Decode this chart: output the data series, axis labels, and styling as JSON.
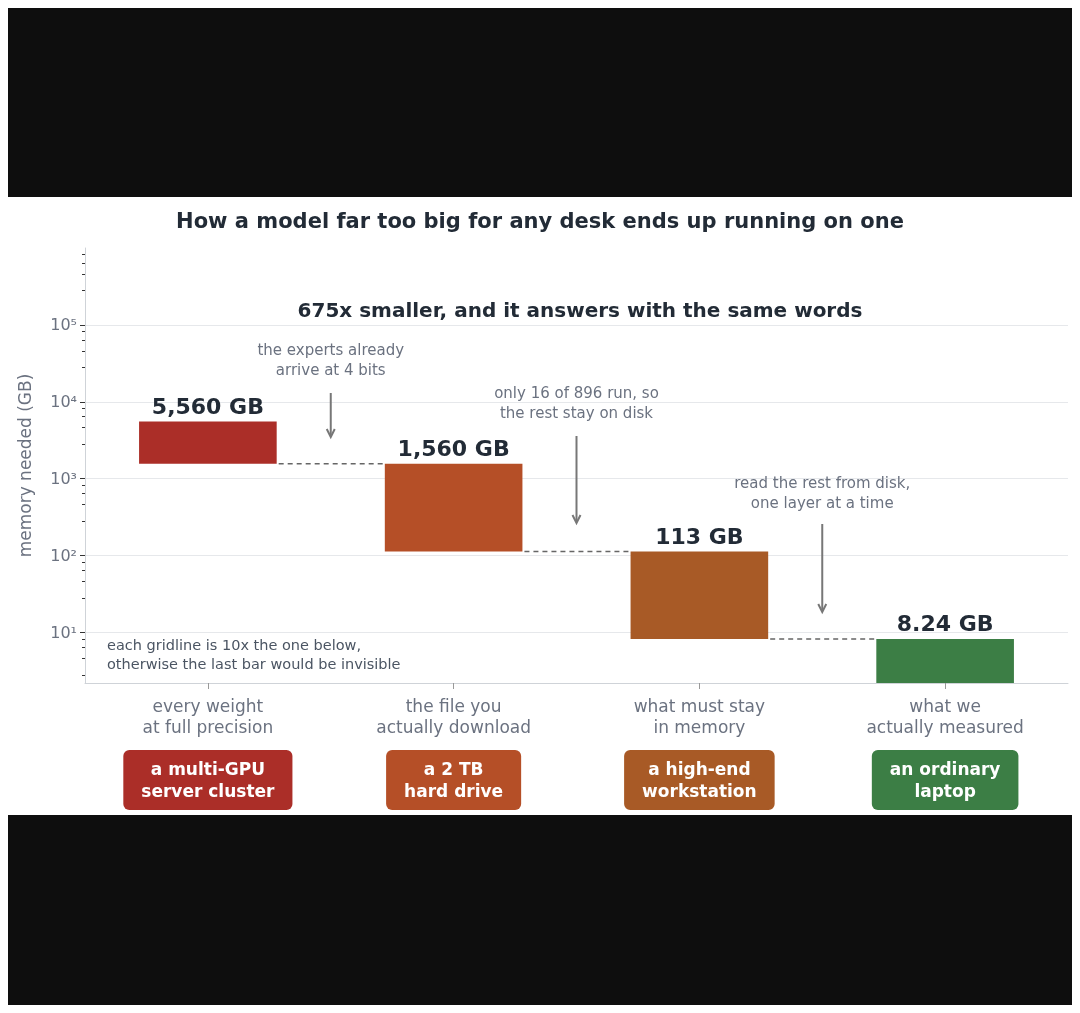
{
  "chart_data": {
    "type": "bar",
    "title": "How a model far too big for any desk ends up running on one",
    "subtitle": "675x smaller, and it answers with the same words",
    "ylabel": "memory needed (GB)",
    "categories": [
      "every weight\nat full precision",
      "the file you\nactually download",
      "what must stay\nin memory",
      "what we\nactually measured"
    ],
    "base": [
      1560,
      113,
      8.24,
      2.2
    ],
    "values": [
      4000,
      1447,
      104.76,
      6.04
    ],
    "value_labels": [
      "5,560 GB",
      "1,560 GB",
      "113 GB",
      "8.24 GB"
    ],
    "colors": [
      "#ab2e28",
      "#b54f27",
      "#a85a26",
      "#3c7e45"
    ],
    "log": "y",
    "ylim": [
      2.2,
      1000000
    ],
    "yticks": [
      {
        "value": 10,
        "label": "10¹"
      },
      {
        "value": 100,
        "label": "10²"
      },
      {
        "value": 1000,
        "label": "10³"
      },
      {
        "value": 10000,
        "label": "10⁴"
      },
      {
        "value": 100000,
        "label": "10⁵"
      }
    ],
    "grid": "y",
    "annotations": [
      "the experts already\narrive at 4 bits",
      "only 16 of 896 run, so\nthe rest stay on disk",
      "read the rest from disk,\none layer at a time",
      "each gridline is 10x the one below,\notherwise the last bar would be invisible",
      "a multi-GPU\nserver cluster",
      "a 2 TB\nhard drive",
      "a high-end\nworkstation",
      "an ordinary\nlaptop"
    ]
  }
}
